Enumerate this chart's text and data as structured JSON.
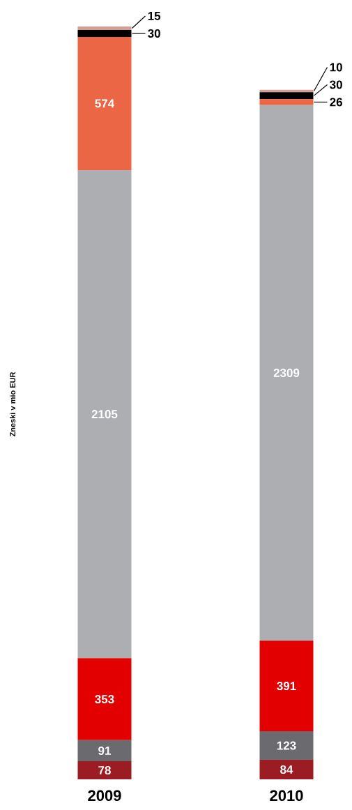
{
  "chart_data": {
    "type": "bar",
    "stacked": true,
    "ylabel": "Zneski v mio EUR",
    "categories": [
      "2009",
      "2010"
    ],
    "data_labels": true,
    "series": [
      {
        "color": "#9b1c22",
        "values": [
          78,
          84
        ]
      },
      {
        "color": "#6b6a6f",
        "values": [
          91,
          123
        ]
      },
      {
        "color": "#e30000",
        "values": [
          353,
          391
        ]
      },
      {
        "color": "#adaeb2",
        "values": [
          2105,
          2309
        ]
      },
      {
        "color": "#eb6644",
        "values": [
          574,
          26
        ]
      },
      {
        "color": "#000000",
        "values": [
          30,
          30
        ]
      },
      {
        "color": "#d4a096",
        "values": [
          15,
          10
        ]
      }
    ]
  }
}
